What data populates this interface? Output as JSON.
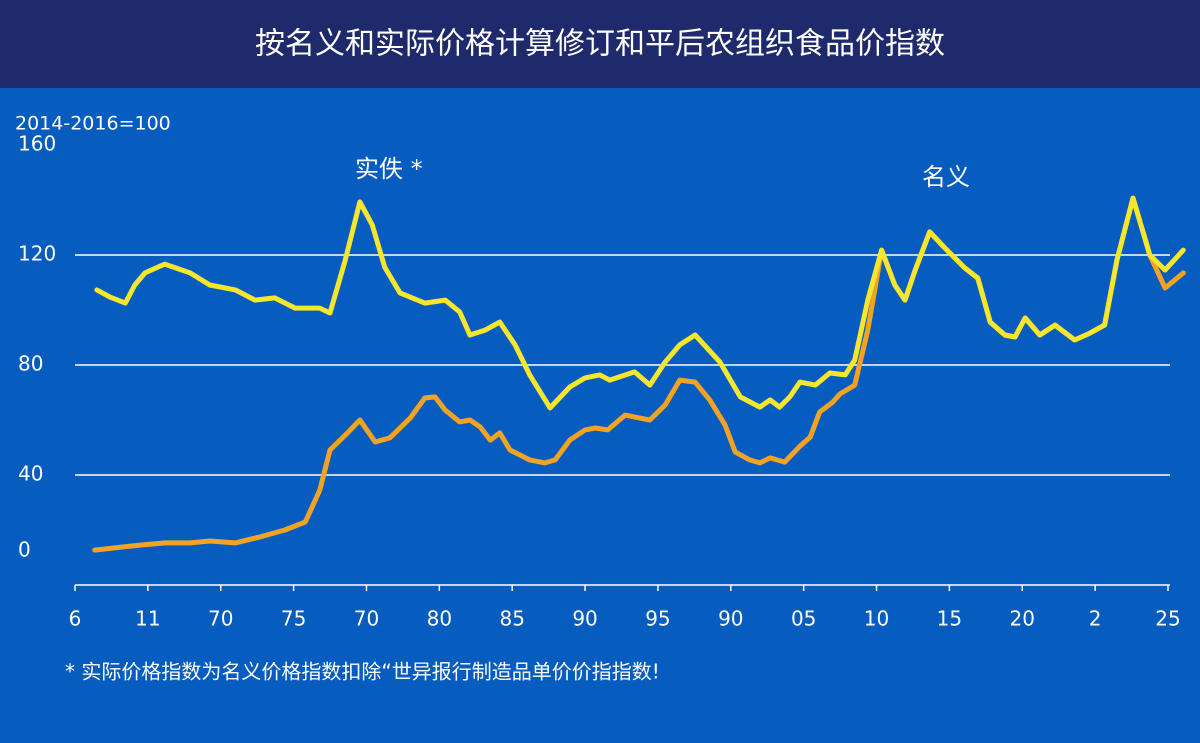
{
  "chart_data": {
    "type": "line",
    "title": "按名义和实际价格计算修订和平后农组织食品价指数",
    "y_axis_label": "2014-2016=100",
    "footnote": "* 实际价格指数为名义价格指数扣除“世异报行制造品单价价指指数!",
    "ylim": [
      0,
      160
    ],
    "yticks": [
      0,
      40,
      80,
      120,
      160
    ],
    "grid": true,
    "xlim": [
      0,
      15
    ],
    "xticks": [
      {
        "value": 0,
        "label": "6"
      },
      {
        "value": 1,
        "label": "11"
      },
      {
        "value": 2,
        "label": "70"
      },
      {
        "value": 3,
        "label": "75"
      },
      {
        "value": 4,
        "label": "70"
      },
      {
        "value": 5,
        "label": "80"
      },
      {
        "value": 6,
        "label": "85"
      },
      {
        "value": 7,
        "label": "90"
      },
      {
        "value": 8,
        "label": "95"
      },
      {
        "value": 9,
        "label": "90"
      },
      {
        "value": 10,
        "label": "05"
      },
      {
        "value": 11,
        "label": "10"
      },
      {
        "value": 12,
        "label": "15"
      },
      {
        "value": 13,
        "label": "20"
      },
      {
        "value": 14,
        "label": "2"
      },
      {
        "value": 15,
        "label": "25"
      }
    ],
    "series": [
      {
        "name": "实佚 *",
        "color": "#f6e62c",
        "x": [
          0.3,
          0.48,
          0.69,
          0.82,
          0.96,
          1.23,
          1.58,
          1.85,
          2.2,
          2.47,
          2.74,
          3.02,
          3.36,
          3.5,
          3.71,
          3.91,
          4.08,
          4.25,
          4.46,
          4.8,
          5.08,
          5.28,
          5.42,
          5.63,
          5.83,
          6.04,
          6.24,
          6.52,
          6.79,
          7.0,
          7.2,
          7.34,
          7.68,
          7.89,
          8.1,
          8.3,
          8.51,
          8.85,
          9.13,
          9.4,
          9.54,
          9.67,
          9.81,
          9.95,
          10.16,
          10.36,
          10.57,
          10.7,
          10.88,
          11.07,
          11.25,
          11.39,
          11.53,
          11.73,
          11.94,
          12.21,
          12.39,
          12.56,
          12.76,
          12.9,
          13.04,
          13.24,
          13.45,
          13.72,
          13.93,
          14.13,
          14.3,
          14.52,
          14.75,
          14.96,
          15.21
        ],
        "values": [
          107.3,
          104.7,
          102.5,
          109.1,
          113.5,
          116.7,
          113.5,
          109.1,
          107.3,
          103.6,
          104.4,
          100.7,
          100.7,
          98.9,
          118.2,
          139.3,
          130.9,
          115.6,
          106.2,
          102.5,
          103.6,
          99.3,
          90.9,
          92.7,
          95.6,
          87.3,
          76.4,
          64.4,
          72,
          75.3,
          76.4,
          74.5,
          77.5,
          72.7,
          81.1,
          87.3,
          90.9,
          81.1,
          68.4,
          64.7,
          67.3,
          64.7,
          68.4,
          73.8,
          72.7,
          77.1,
          76.4,
          81.8,
          103.6,
          121.8,
          109.1,
          103.6,
          114.5,
          128.4,
          122.5,
          115.3,
          111.6,
          95.6,
          90.9,
          90.2,
          97.1,
          90.9,
          94.5,
          89.1,
          91.6,
          94.5,
          118.2,
          140.7,
          120,
          114.5,
          121.8
        ]
      },
      {
        "name": "名义",
        "color": "#f2a324",
        "x": [
          0.27,
          0.89,
          1.24,
          1.58,
          1.85,
          2.2,
          2.54,
          2.88,
          3.16,
          3.36,
          3.5,
          3.71,
          3.91,
          4.12,
          4.32,
          4.6,
          4.8,
          4.94,
          5.08,
          5.28,
          5.42,
          5.56,
          5.7,
          5.83,
          5.97,
          6.24,
          6.45,
          6.59,
          6.79,
          7.0,
          7.14,
          7.31,
          7.55,
          7.75,
          7.89,
          8.1,
          8.3,
          8.51,
          8.71,
          8.92,
          9.06,
          9.26,
          9.4,
          9.54,
          9.74,
          9.95,
          10.09,
          10.22,
          10.4,
          10.5,
          10.7,
          10.88,
          11.07,
          11.25,
          11.39,
          11.53,
          11.73,
          11.94,
          12.21,
          12.39,
          12.56,
          12.76,
          12.9,
          13.04,
          13.24,
          13.45,
          13.72,
          13.93,
          14.13,
          14.3,
          14.52,
          14.75,
          14.96,
          15.21
        ],
        "values": [
          12.7,
          14.5,
          15.3,
          15.3,
          16,
          15.3,
          17.5,
          20,
          22.9,
          34.5,
          49.1,
          54.5,
          60,
          52,
          53.5,
          60.7,
          68,
          68.4,
          63.6,
          59.3,
          60,
          57.5,
          52.7,
          55.3,
          49.1,
          45.5,
          44.4,
          45.5,
          52.7,
          56.4,
          57.1,
          56.4,
          61.8,
          60.7,
          60,
          65.5,
          74.5,
          73.8,
          67.3,
          58.2,
          48.4,
          45.5,
          44.4,
          46.2,
          44.7,
          50.5,
          53.8,
          62.9,
          66.5,
          69.5,
          72.7,
          92.7,
          121.8,
          109.1,
          103.6,
          114.5,
          128.4,
          122.5,
          115.3,
          111.6,
          95.6,
          90.9,
          90.2,
          97.1,
          90.9,
          94.5,
          89.1,
          91.6,
          94.5,
          118.2,
          140.7,
          120,
          108,
          113.5
        ]
      }
    ]
  }
}
